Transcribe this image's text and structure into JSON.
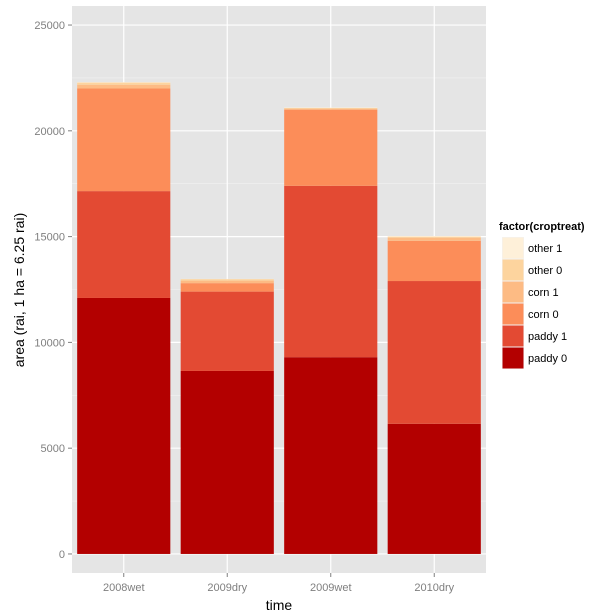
{
  "chart_data": {
    "type": "bar",
    "stacked": true,
    "xlabel": "time",
    "ylabel": "area (rai, 1 ha = 6.25 rai)",
    "categories": [
      "2008wet",
      "2009dry",
      "2009wet",
      "2010dry"
    ],
    "ylim": [
      -900,
      25900
    ],
    "yticks": [
      0,
      5000,
      10000,
      15000,
      20000,
      25000
    ],
    "ytick_labels": [
      "0",
      "5000",
      "10000",
      "15000",
      "20000",
      "25000"
    ],
    "grid": true,
    "legend": {
      "title": "factor(croptreat)",
      "position": "right"
    },
    "series": [
      {
        "name": "paddy 0",
        "color": "#b30000",
        "values": [
          12100,
          8650,
          9300,
          6150
        ]
      },
      {
        "name": "paddy 1",
        "color": "#e34a33",
        "values": [
          5050,
          3750,
          8100,
          6750
        ]
      },
      {
        "name": "corn 0",
        "color": "#fc8d59",
        "values": [
          4850,
          400,
          3600,
          1900
        ]
      },
      {
        "name": "corn 1",
        "color": "#fdbb84",
        "values": [
          180,
          120,
          50,
          150
        ]
      },
      {
        "name": "other 0",
        "color": "#fdd49e",
        "values": [
          100,
          70,
          30,
          50
        ]
      },
      {
        "name": "other 1",
        "color": "#fef0d9",
        "values": [
          20,
          10,
          20,
          20
        ]
      }
    ],
    "legend_order": [
      "other 1",
      "other 0",
      "corn 1",
      "corn 0",
      "paddy 1",
      "paddy 0"
    ]
  },
  "colors": {
    "panel_background": "#e5e5e5",
    "grid_major": "#ffffff",
    "grid_minor": "#f2f2f2",
    "tick_text": "#7f7f7f"
  }
}
